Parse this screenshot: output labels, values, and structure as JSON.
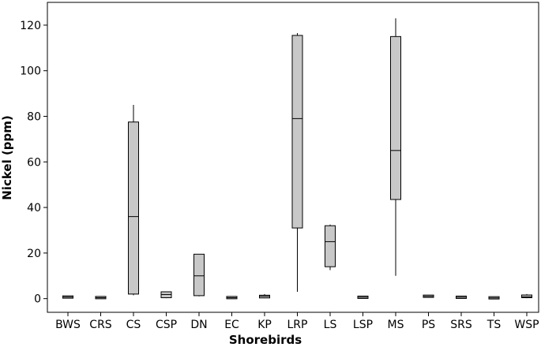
{
  "chart_data": {
    "type": "boxplot",
    "title": "",
    "xlabel": "Shorebirds",
    "ylabel": "Nickel (ppm)",
    "ylim": [
      -6,
      130
    ],
    "yticks": [
      0,
      20,
      40,
      60,
      80,
      100,
      120
    ],
    "grid": false,
    "box_fill": "#c8c8c8",
    "categories": [
      "BWS",
      "CRS",
      "CS",
      "CSP",
      "DN",
      "EC",
      "KP",
      "LRP",
      "LS",
      "LSP",
      "MS",
      "PS",
      "SRS",
      "TS",
      "WSP"
    ],
    "boxes": [
      {
        "min": 0.6,
        "q1": 0.6,
        "median": 0.7,
        "q3": 0.8,
        "max": 0.8
      },
      {
        "min": 0.1,
        "q1": 0.2,
        "median": 0.4,
        "q3": 0.7,
        "max": 0.8
      },
      {
        "min": 1.5,
        "q1": 2,
        "median": 36,
        "q3": 77.5,
        "max": 85
      },
      {
        "min": 0.2,
        "q1": 0.4,
        "median": 1.8,
        "q3": 3,
        "max": 3
      },
      {
        "min": 1,
        "q1": 1.3,
        "median": 10,
        "q3": 19.5,
        "max": 19.5
      },
      {
        "min": 0.1,
        "q1": 0.2,
        "median": 0.4,
        "q3": 0.7,
        "max": 0.8
      },
      {
        "min": 0.2,
        "q1": 0.3,
        "median": 1,
        "q3": 1.5,
        "max": 2
      },
      {
        "min": 3,
        "q1": 31,
        "median": 79,
        "q3": 115.5,
        "max": 116.5
      },
      {
        "min": 12.5,
        "q1": 14,
        "median": 25,
        "q3": 32,
        "max": 32.5
      },
      {
        "min": 0.2,
        "q1": 0.4,
        "median": 0.6,
        "q3": 0.8,
        "max": 0.9
      },
      {
        "min": 10,
        "q1": 43.5,
        "median": 65,
        "q3": 115,
        "max": 123
      },
      {
        "min": 0.6,
        "q1": 0.8,
        "median": 1,
        "q3": 1.3,
        "max": 1.5
      },
      {
        "min": 0.2,
        "q1": 0.4,
        "median": 0.6,
        "q3": 0.8,
        "max": 0.9
      },
      {
        "min": 0,
        "q1": 0.1,
        "median": 0.3,
        "q3": 0.6,
        "max": 0.8
      },
      {
        "min": 0.2,
        "q1": 0.4,
        "median": 0.8,
        "q3": 1.6,
        "max": 2
      }
    ]
  }
}
